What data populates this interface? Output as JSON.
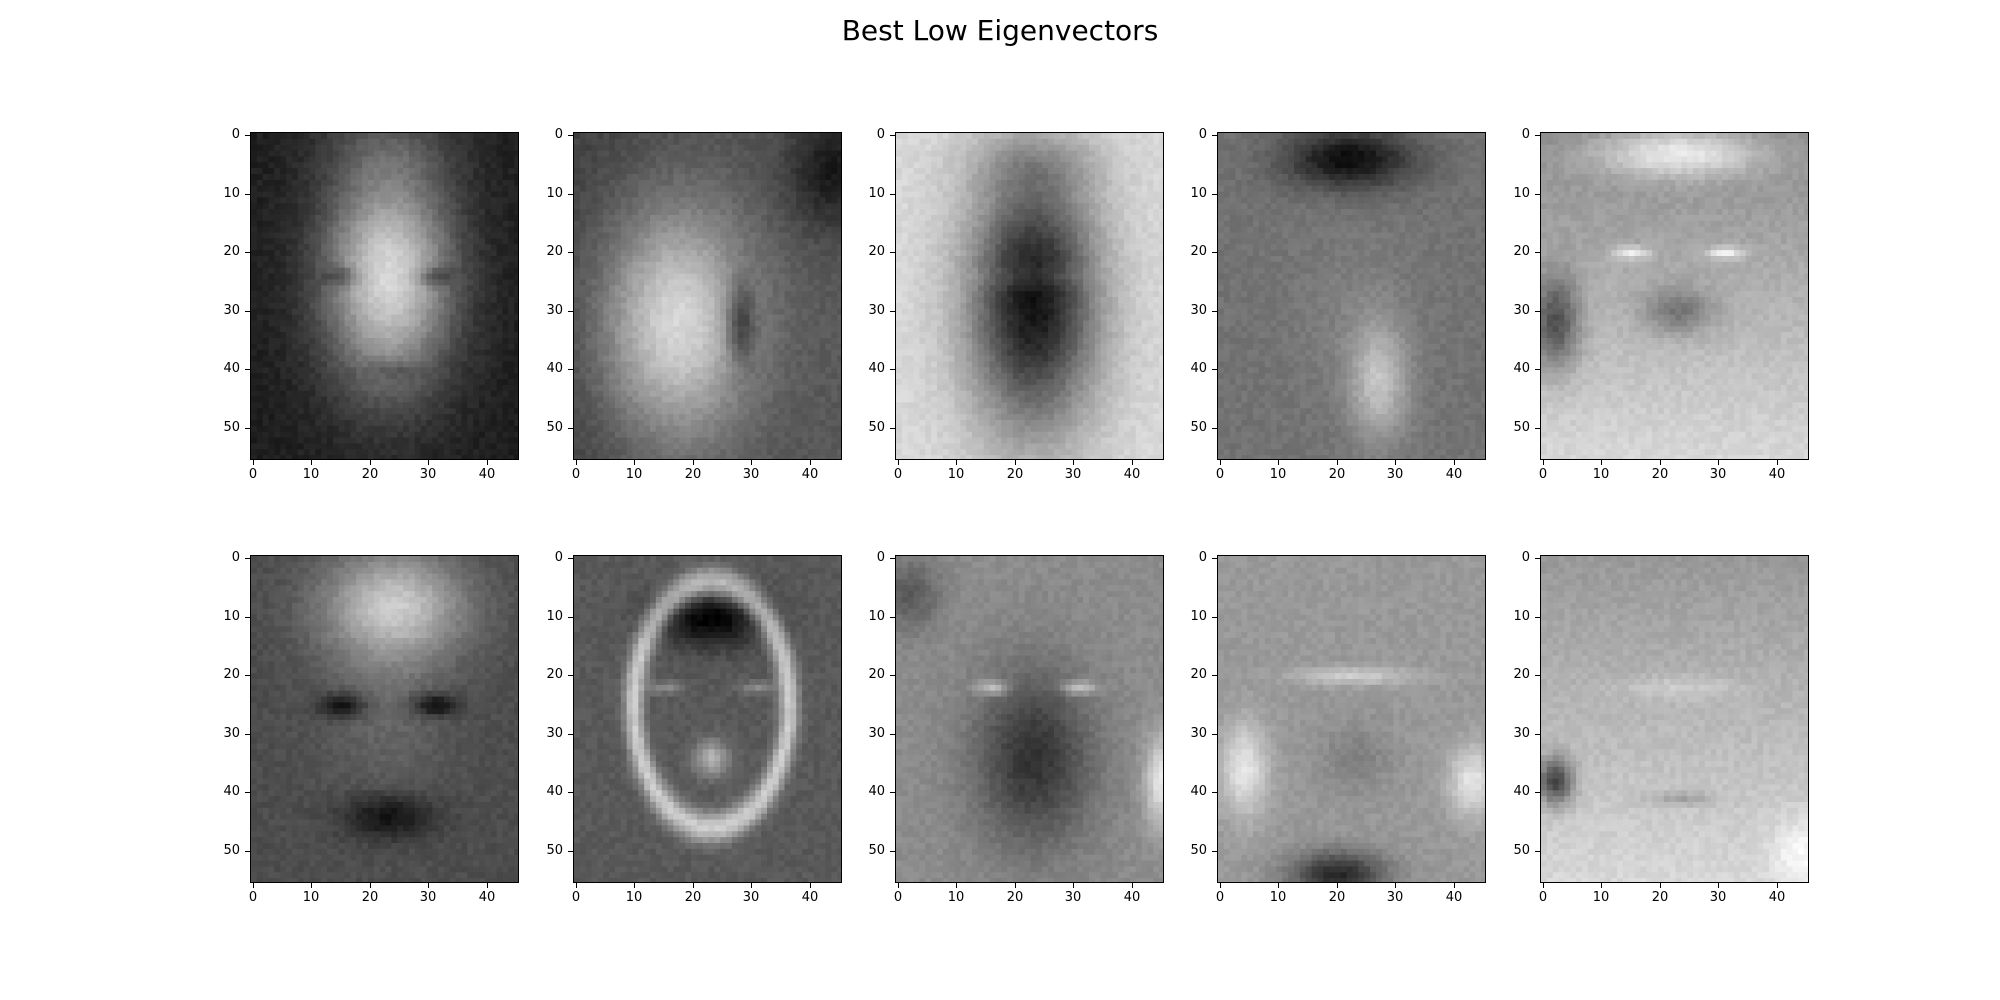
{
  "chart_data": {
    "type": "heatmap",
    "title": "Best Low Eigenvectors",
    "colormap": "gray",
    "image_shape": [
      56,
      46
    ],
    "xlim": [
      -0.5,
      45.5
    ],
    "ylim": [
      55.5,
      -0.5
    ],
    "x_ticks": [
      "0",
      "10",
      "20",
      "30",
      "40"
    ],
    "y_ticks": [
      "0",
      "10",
      "20",
      "30",
      "40",
      "50"
    ],
    "rows": 2,
    "cols": 5,
    "panels": [
      {
        "style": "bright-face"
      },
      {
        "style": "side-lit"
      },
      {
        "style": "dark-face"
      },
      {
        "style": "dark-hair"
      },
      {
        "style": "bright-hair-eyes"
      },
      {
        "style": "bright-forehead"
      },
      {
        "style": "outline-dark-forehead"
      },
      {
        "style": "dark-face-bright-eyes"
      },
      {
        "style": "neutral-dark-neck"
      },
      {
        "style": "neutral-dark-left"
      }
    ]
  }
}
